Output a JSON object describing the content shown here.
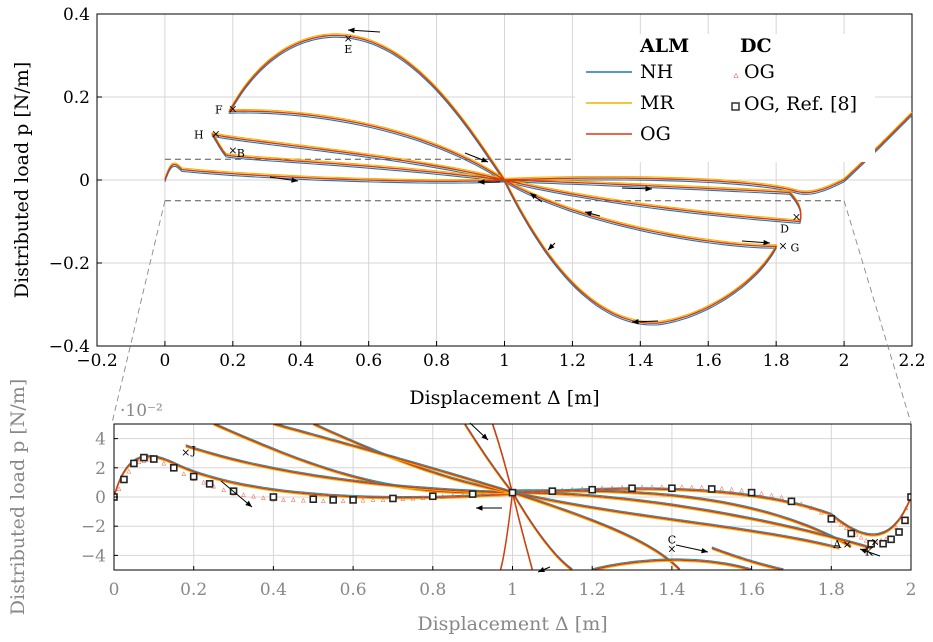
{
  "chart_data": [
    {
      "type": "line",
      "xlabel": "Displacement Δ [m]",
      "ylabel": "Distributed load p [N/m]",
      "xlim": [
        -0.2,
        2.2
      ],
      "ylim": [
        -0.4,
        0.4
      ],
      "xticks": [
        "−0.2",
        "0",
        "0.2",
        "0.4",
        "0.6",
        "0.8",
        "1",
        "1.2",
        "1.4",
        "1.6",
        "1.8",
        "2",
        "2.2"
      ],
      "yticks": [
        "0.4",
        "0.2",
        "0",
        "−0.2",
        "−0.4"
      ],
      "grid": true,
      "legend": {
        "placement": "top-right",
        "headers": [
          "ALM",
          "DC"
        ],
        "alm_entries": [
          "NH",
          "MR",
          "OG"
        ],
        "dc_entries": [
          "OG",
          "OG, Ref. [8]"
        ]
      },
      "colors": {
        "NH": "#1f77b4",
        "MR": "#f0b400",
        "OG": "#d93a10",
        "DC_OG": "#f06040",
        "ref": "#333333"
      },
      "annotations": [
        "E",
        "F",
        "H",
        "B",
        "D",
        "G"
      ],
      "series": [
        {
          "name": "OG",
          "x": [
            0,
            0.05,
            0.2,
            0.5,
            0.8,
            1.0,
            1.2,
            1.45,
            1.7,
            1.85,
            1.9,
            2.0,
            2.2
          ],
          "y": [
            0.0,
            0.025,
            0.02,
            -0.005,
            -0.005,
            0.0,
            0.01,
            0.015,
            0.0,
            -0.03,
            -0.02,
            0.0,
            0.16
          ]
        }
      ]
    },
    {
      "type": "line",
      "xlabel": "Displacement Δ [m]",
      "ylabel": "Distributed load p [N/m]",
      "scale_label": "·10⁻²",
      "xlim": [
        0,
        2
      ],
      "ylim": [
        -5,
        5
      ],
      "xticks": [
        "0",
        "0.2",
        "0.4",
        "0.6",
        "0.8",
        "1",
        "1.2",
        "1.4",
        "1.6",
        "1.8",
        "2"
      ],
      "yticks": [
        "4",
        "2",
        "0",
        "−2",
        "−4"
      ],
      "grid": true,
      "annotations": [
        "J",
        "C",
        "A",
        "K"
      ],
      "ref_points": {
        "x": [
          0,
          0.025,
          0.05,
          0.075,
          0.1,
          0.15,
          0.2,
          0.24,
          0.3,
          0.4,
          0.5,
          0.55,
          0.6,
          0.7,
          0.8,
          0.9,
          1.0,
          1.1,
          1.2,
          1.3,
          1.4,
          1.5,
          1.6,
          1.7,
          1.8,
          1.85,
          1.9,
          1.93,
          1.95,
          1.97,
          1.985,
          2.0
        ],
        "y": [
          0,
          1.2,
          2.3,
          2.7,
          2.6,
          2.0,
          1.4,
          0.9,
          0.4,
          0.0,
          -0.15,
          -0.2,
          -0.2,
          -0.1,
          0.05,
          0.2,
          0.3,
          0.4,
          0.5,
          0.6,
          0.6,
          0.55,
          0.3,
          -0.3,
          -1.5,
          -2.5,
          -3.2,
          -3.2,
          -2.9,
          -2.4,
          -1.6,
          0
        ]
      },
      "dc_points": {
        "x": [
          0.0,
          0.05,
          0.1,
          0.2,
          0.3,
          0.4,
          0.5,
          0.6,
          0.7,
          0.8,
          0.9,
          1.0,
          1.1,
          1.2,
          1.3,
          1.4,
          1.5,
          1.6,
          1.7,
          1.8,
          1.85,
          1.9,
          1.95,
          2.0
        ],
        "y": [
          0,
          2.4,
          2.7,
          1.3,
          0.3,
          -0.1,
          -0.2,
          -0.2,
          -0.1,
          0.05,
          0.2,
          0.35,
          0.5,
          0.65,
          0.75,
          0.75,
          0.7,
          0.45,
          -0.1,
          -1.3,
          -2.3,
          -3.1,
          -2.7,
          0
        ]
      }
    }
  ]
}
